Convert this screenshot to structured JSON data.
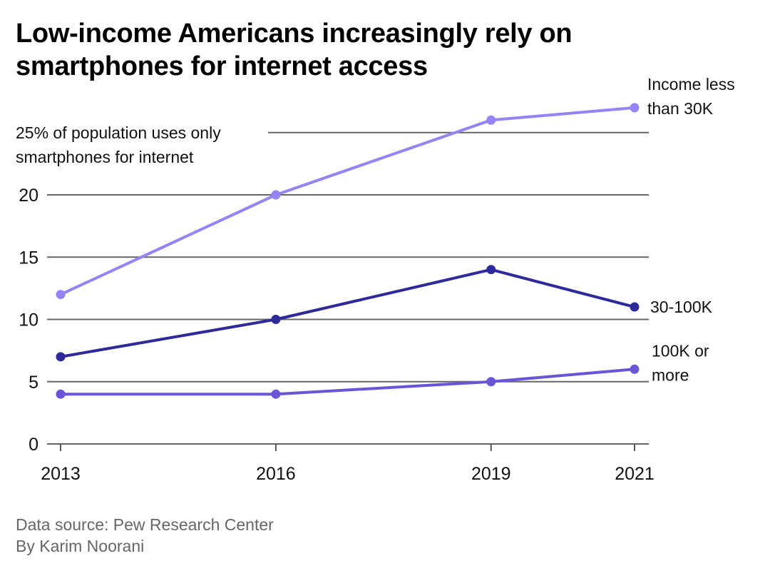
{
  "title": "Low-income Americans increasingly rely on smartphones for internet access",
  "footer": {
    "source": "Data source: Pew Research Center",
    "author": "By Karim Noorani"
  },
  "chart_data": {
    "type": "line",
    "title": "Low-income Americans increasingly rely on smartphones for internet access",
    "xlabel": "",
    "ylabel": "% of population uses only smartphones for internet",
    "x": [
      2013,
      2016,
      2019,
      2021
    ],
    "x_tick_labels": [
      "2013",
      "2016",
      "2019",
      "2021"
    ],
    "ylim": [
      0,
      27
    ],
    "y_ticks": [
      0,
      5,
      10,
      15,
      20,
      25
    ],
    "y_tick_labels": [
      "0",
      "5",
      "10",
      "15",
      "20",
      ""
    ],
    "top_tick_annotation": [
      "25% of population uses only",
      "smartphones for internet"
    ],
    "grid": true,
    "legend": "direct-labels-right",
    "series": [
      {
        "name": "Income less than 30K",
        "label_lines": [
          "Income less",
          "than 30K"
        ],
        "color": "#9583F7",
        "values": [
          12,
          20,
          26,
          27
        ]
      },
      {
        "name": "30-100K",
        "label_lines": [
          "30-100K"
        ],
        "color": "#2E2A9C",
        "values": [
          7,
          10,
          14,
          11
        ]
      },
      {
        "name": "100K or more",
        "label_lines": [
          "100K or",
          "more"
        ],
        "color": "#6A55D8",
        "values": [
          4,
          4,
          5,
          6
        ]
      }
    ]
  }
}
